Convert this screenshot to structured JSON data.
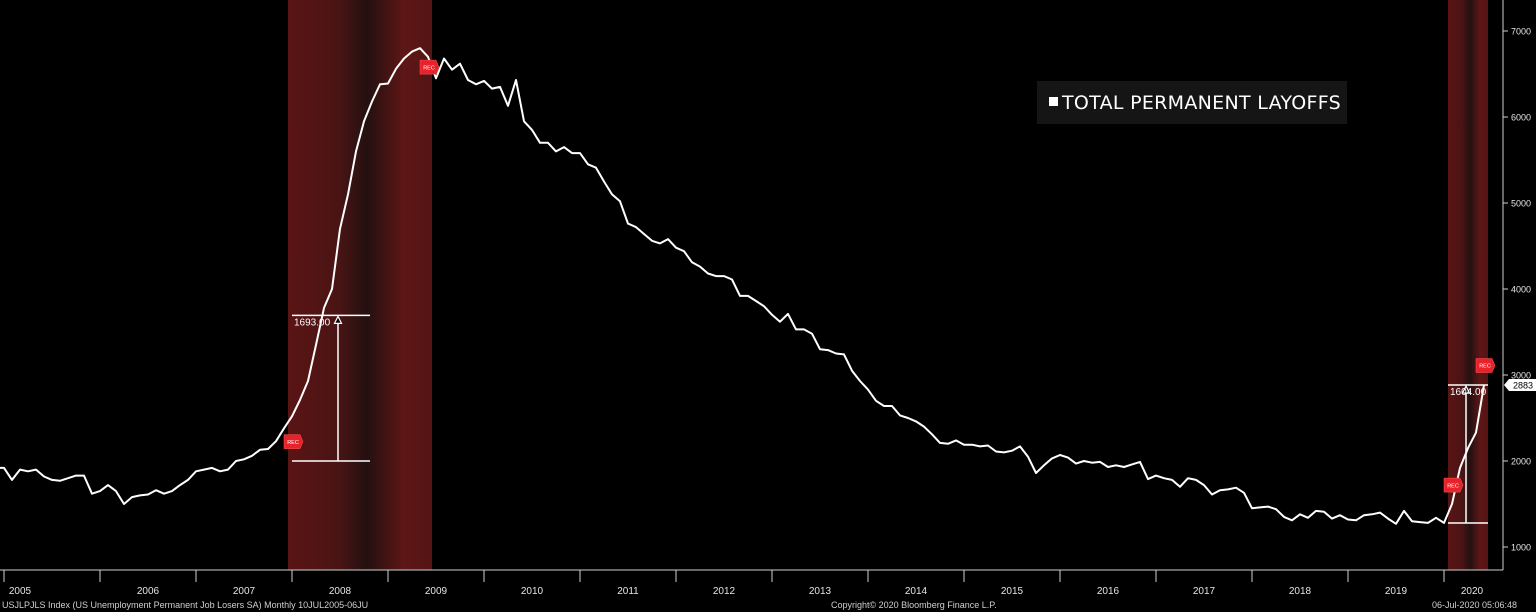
{
  "chart_data": {
    "type": "line",
    "title": "",
    "legend": {
      "label": "TOTAL PERMANENT LAYOFFS",
      "placement": "top-right"
    },
    "x_ticks": [
      "2005",
      "2006",
      "2007",
      "2008",
      "2009",
      "2010",
      "2011",
      "2012",
      "2013",
      "2014",
      "2015",
      "2016",
      "2017",
      "2018",
      "2019",
      "2020"
    ],
    "y_ticks": [
      "1000",
      "2000",
      "3000",
      "4000",
      "5000",
      "6000",
      "7000"
    ],
    "ylim": [
      800,
      7200
    ],
    "grid": false,
    "line_color": "#ffffff",
    "series": [
      {
        "x": [
          "2005-01",
          "2005-02",
          "2005-03",
          "2005-04",
          "2005-05",
          "2005-06",
          "2005-07",
          "2005-08",
          "2005-09",
          "2005-10",
          "2005-11",
          "2005-12",
          "2006-01",
          "2006-02",
          "2006-03",
          "2006-04",
          "2006-05",
          "2006-06",
          "2006-07",
          "2006-08",
          "2006-09",
          "2006-10",
          "2006-11",
          "2006-12",
          "2007-01",
          "2007-02",
          "2007-03",
          "2007-04",
          "2007-05",
          "2007-06",
          "2007-07",
          "2007-08",
          "2007-09",
          "2007-10",
          "2007-11",
          "2007-12",
          "2008-01",
          "2008-02",
          "2008-03",
          "2008-04",
          "2008-05",
          "2008-06",
          "2008-07",
          "2008-08",
          "2008-09",
          "2008-10",
          "2008-11",
          "2008-12",
          "2009-01",
          "2009-02",
          "2009-03",
          "2009-04",
          "2009-05",
          "2009-06",
          "2009-07",
          "2009-08",
          "2009-09",
          "2009-10",
          "2009-11",
          "2009-12",
          "2010-01",
          "2010-02",
          "2010-03",
          "2010-04",
          "2010-05",
          "2010-06",
          "2010-07",
          "2010-08",
          "2010-09",
          "2010-10",
          "2010-11",
          "2010-12",
          "2011-01",
          "2011-02",
          "2011-03",
          "2011-04",
          "2011-05",
          "2011-06",
          "2011-07",
          "2011-08",
          "2011-09",
          "2011-10",
          "2011-11",
          "2011-12",
          "2012-01",
          "2012-02",
          "2012-03",
          "2012-04",
          "2012-05",
          "2012-06",
          "2012-07",
          "2012-08",
          "2012-09",
          "2012-10",
          "2012-11",
          "2012-12",
          "2013-01",
          "2013-02",
          "2013-03",
          "2013-04",
          "2013-05",
          "2013-06",
          "2013-07",
          "2013-08",
          "2013-09",
          "2013-10",
          "2013-11",
          "2013-12",
          "2014-01",
          "2014-02",
          "2014-03",
          "2014-04",
          "2014-05",
          "2014-06",
          "2014-07",
          "2014-08",
          "2014-09",
          "2014-10",
          "2014-11",
          "2014-12",
          "2015-01",
          "2015-02",
          "2015-03",
          "2015-04",
          "2015-05",
          "2015-06",
          "2015-07",
          "2015-08",
          "2015-09",
          "2015-10",
          "2015-11",
          "2015-12",
          "2016-01",
          "2016-02",
          "2016-03",
          "2016-04",
          "2016-05",
          "2016-06",
          "2016-07",
          "2016-08",
          "2016-09",
          "2016-10",
          "2016-11",
          "2016-12",
          "2017-01",
          "2017-02",
          "2017-03",
          "2017-04",
          "2017-05",
          "2017-06",
          "2017-07",
          "2017-08",
          "2017-09",
          "2017-10",
          "2017-11",
          "2017-12",
          "2018-01",
          "2018-02",
          "2018-03",
          "2018-04",
          "2018-05",
          "2018-06",
          "2018-07",
          "2018-08",
          "2018-09",
          "2018-10",
          "2018-11",
          "2018-12",
          "2019-01",
          "2019-02",
          "2019-03",
          "2019-04",
          "2019-05",
          "2019-06",
          "2019-07",
          "2019-08",
          "2019-09",
          "2019-10",
          "2019-11",
          "2019-12",
          "2020-01",
          "2020-02",
          "2020-03",
          "2020-04",
          "2020-05",
          "2020-06"
        ],
        "values": [
          1920,
          1780,
          1900,
          1880,
          1900,
          1820,
          1780,
          1770,
          1800,
          1830,
          1830,
          1620,
          1650,
          1720,
          1650,
          1500,
          1580,
          1600,
          1610,
          1660,
          1620,
          1650,
          1720,
          1780,
          1880,
          1900,
          1920,
          1880,
          1900,
          2000,
          2020,
          2060,
          2130,
          2140,
          2230,
          2380,
          2520,
          2710,
          2930,
          3350,
          3780,
          4000,
          4700,
          5100,
          5600,
          5950,
          6180,
          6380,
          6390,
          6560,
          6680,
          6760,
          6800,
          6700,
          6450,
          6680,
          6550,
          6620,
          6430,
          6380,
          6420,
          6330,
          6350,
          6130,
          6430,
          5950,
          5850,
          5700,
          5700,
          5600,
          5650,
          5580,
          5580,
          5450,
          5410,
          5250,
          5100,
          5020,
          4760,
          4720,
          4640,
          4560,
          4530,
          4580,
          4480,
          4440,
          4310,
          4260,
          4180,
          4150,
          4150,
          4110,
          3920,
          3920,
          3860,
          3800,
          3700,
          3620,
          3710,
          3530,
          3530,
          3480,
          3300,
          3290,
          3250,
          3240,
          3050,
          2930,
          2830,
          2700,
          2640,
          2640,
          2530,
          2500,
          2460,
          2400,
          2310,
          2210,
          2200,
          2240,
          2190,
          2190,
          2170,
          2180,
          2110,
          2100,
          2120,
          2170,
          2050,
          1860,
          1950,
          2030,
          2070,
          2040,
          1970,
          2000,
          1980,
          1990,
          1930,
          1950,
          1930,
          1960,
          1990,
          1790,
          1830,
          1800,
          1780,
          1700,
          1800,
          1780,
          1720,
          1610,
          1660,
          1670,
          1690,
          1630,
          1450,
          1460,
          1470,
          1440,
          1350,
          1310,
          1380,
          1340,
          1420,
          1410,
          1330,
          1370,
          1320,
          1310,
          1370,
          1380,
          1400,
          1330,
          1270,
          1420,
          1300,
          1290,
          1280,
          1340,
          1280,
          1500,
          1920,
          2150,
          2330,
          2883
        ]
      }
    ],
    "recession_bands": [
      {
        "start": "2008-01",
        "end": "2009-06"
      },
      {
        "start": "2020-02",
        "end": "2020-06"
      }
    ],
    "annotations": [
      {
        "label": "1693.00",
        "from": {
          "x": "2008-01",
          "y": 2000
        },
        "to": {
          "x": "2008-10",
          "y": 3693
        }
      },
      {
        "label": "1604.00",
        "from": {
          "x": "2020-02",
          "y": 1279
        },
        "to": {
          "x": "2020-06",
          "y": 2883
        }
      }
    ],
    "rec_markers": [
      {
        "label": "REC",
        "x": "2008-01",
        "y": 2225
      },
      {
        "label": "REC",
        "x": "2009-06",
        "y": 6580
      },
      {
        "label": "REC",
        "x": "2020-02",
        "y": 1720
      },
      {
        "label": "REC",
        "x": "2020-06",
        "y": 3110
      }
    ],
    "last_value_label": "2883"
  },
  "footer": {
    "left": "USJLPJLS Index (US Unemployment Permanent Job Losers SA)  Monthly 10JUL2005-06JU",
    "center": "Copyright© 2020 Bloomberg Finance L.P.",
    "right": "06-Jul-2020 05:06:48"
  }
}
